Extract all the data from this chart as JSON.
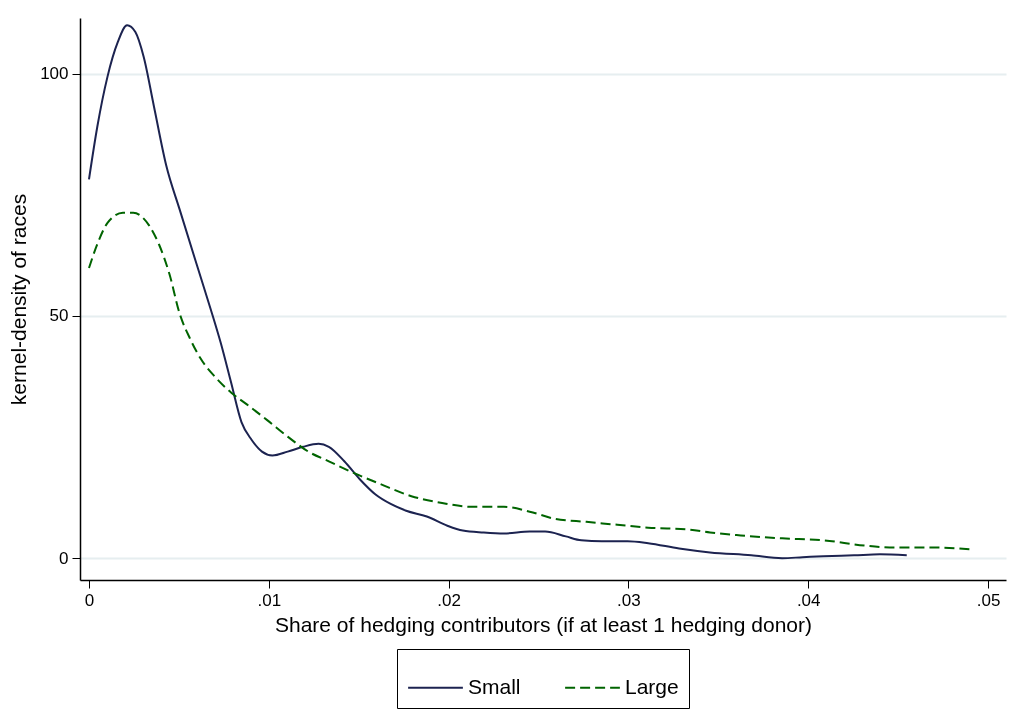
{
  "chart_data": {
    "type": "line",
    "xlabel": "Share of hedging contributors (if at least 1 hedging donor)",
    "ylabel": "kernel-density of races",
    "xlim": [
      -0.0005,
      0.051
    ],
    "ylim": [
      -4.5,
      111.5
    ],
    "xticks": [
      0,
      {
        "value": 0.01,
        "label": ".01"
      },
      {
        "value": 0.02,
        "label": ".02"
      },
      {
        "value": 0.03,
        "label": ".03"
      },
      {
        "value": 0.04,
        "label": ".04"
      },
      {
        "value": 0.05,
        "label": ".05"
      }
    ],
    "yticks": [
      0,
      50,
      100
    ],
    "grid": "y",
    "legend": "bottom",
    "series": [
      {
        "name": "Small",
        "color": "#1c2350",
        "line_style": "solid",
        "x": [
          0,
          0.00046,
          0.00103,
          0.0016,
          0.00212,
          0.00258,
          0.00304,
          0.00361,
          0.0043,
          0.00504,
          0.0059,
          0.00676,
          0.00733,
          0.0079,
          0.00848,
          0.00905,
          0.00962,
          0.0102,
          0.01105,
          0.01191,
          0.01277,
          0.01334,
          0.0142,
          0.01506,
          0.01592,
          0.01678,
          0.01764,
          0.01879,
          0.01993,
          0.02079,
          0.02194,
          0.02308,
          0.02451,
          0.02537,
          0.02652,
          0.02738,
          0.02852,
          0.02995,
          0.0311,
          0.03282,
          0.03454,
          0.03683,
          0.03855,
          0.03969,
          0.04084,
          0.04255,
          0.04399,
          0.04548
        ],
        "values": [
          78.2,
          89,
          99.4,
          106.5,
          110,
          108.6,
          103.5,
          93.3,
          81,
          72,
          61.7,
          51.5,
          44.4,
          36.3,
          28.1,
          24.4,
          22,
          21.2,
          22,
          23,
          23.6,
          23,
          20,
          16.3,
          13.2,
          11.2,
          9.8,
          8.6,
          6.7,
          5.7,
          5.3,
          5.1,
          5.5,
          5.5,
          4.5,
          3.7,
          3.5,
          3.5,
          3.1,
          2,
          1.2,
          0.6,
          0,
          0.2,
          0.4,
          0.6,
          0.8,
          0.6
        ]
      },
      {
        "name": "Large",
        "color": "#006400",
        "line_style": "dashed",
        "x": [
          0,
          0.00046,
          0.00103,
          0.00189,
          0.00246,
          0.00332,
          0.00389,
          0.00447,
          0.00504,
          0.00561,
          0.00619,
          0.00704,
          0.0079,
          0.00876,
          0.00991,
          0.01105,
          0.0122,
          0.01334,
          0.01478,
          0.01621,
          0.01793,
          0.01964,
          0.02136,
          0.02308,
          0.02451,
          0.02595,
          0.02766,
          0.02938,
          0.0311,
          0.03339,
          0.03454,
          0.03625,
          0.03855,
          0.04084,
          0.04313,
          0.04485,
          0.04714,
          0.04914
        ],
        "values": [
          59.9,
          64.8,
          69.2,
          71.3,
          71.3,
          68.8,
          64.8,
          58.7,
          50.5,
          45.4,
          41.3,
          37.3,
          34.2,
          31.8,
          28.5,
          25.1,
          22,
          20,
          17.5,
          15.3,
          12.8,
          11.4,
          10.6,
          10.6,
          9.6,
          8.1,
          7.5,
          6.9,
          6.3,
          5.9,
          5.3,
          4.7,
          4.1,
          3.7,
          2.6,
          2.2,
          2.2,
          1.8
        ]
      }
    ]
  }
}
